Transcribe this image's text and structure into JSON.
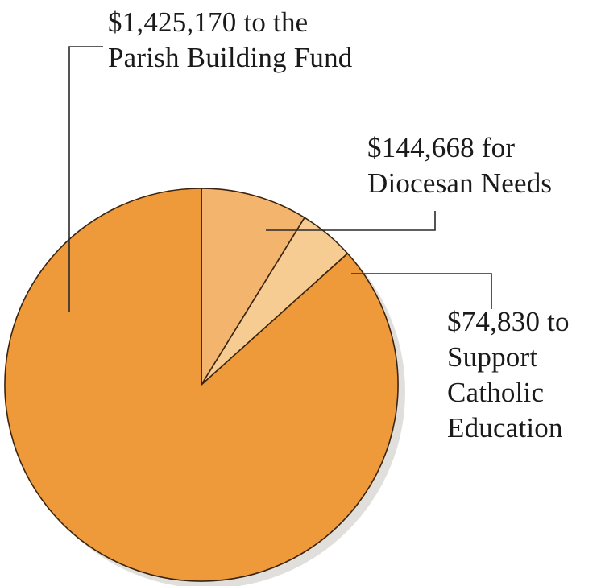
{
  "chart_data": {
    "type": "pie",
    "title": "",
    "slices": [
      {
        "label_lines": [
          "$1,425,170  to the",
          "Parish Building Fund"
        ],
        "value": 1425170,
        "color": "#ee9a3a"
      },
      {
        "label_lines": [
          "$144,668 for",
          "Diocesan Needs"
        ],
        "value": 144668,
        "color": "#f3b46e"
      },
      {
        "label_lines": [
          "$74,830 to",
          "Support",
          "Catholic",
          "Education"
        ],
        "value": 74830,
        "color": "#f7cc92"
      }
    ],
    "start_angle_deg": 90,
    "direction": "clockwise",
    "legend": "none (callout labels with leader lines)"
  },
  "colors": {
    "outline": "#3a2410",
    "leader": "#2a2a2a",
    "shadow": "#c9c4be"
  }
}
